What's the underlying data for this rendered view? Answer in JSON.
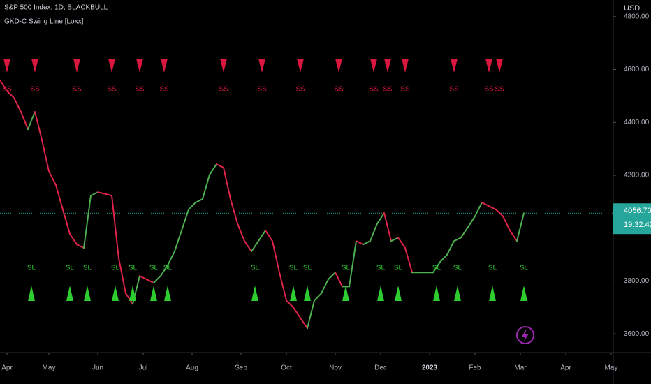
{
  "chart_data": {
    "type": "line",
    "title": "S&P 500 Index, 1D, BLACKBULL",
    "indicator": "GKD-C Swing Line [Loxx]",
    "currency": "USD",
    "up_color": "#4caf50",
    "down_color": "#e0244a",
    "x": [
      0,
      2,
      4,
      6,
      8,
      10,
      12,
      14,
      16,
      18,
      20,
      22,
      24,
      26,
      28,
      30,
      32,
      34,
      36,
      38,
      40,
      42,
      44,
      46,
      48,
      50,
      52,
      54,
      56,
      58,
      60,
      62,
      64,
      66,
      68,
      70,
      72,
      74,
      76,
      78,
      80,
      82,
      84,
      86,
      88,
      90,
      92,
      94,
      96,
      98,
      100,
      102,
      104,
      106,
      108,
      110,
      112,
      114,
      116,
      118,
      120,
      122,
      124,
      126,
      128,
      130,
      132,
      134,
      136,
      138,
      140,
      142,
      144,
      146,
      148,
      150
    ],
    "values": [
      4559,
      4519,
      4493,
      4440,
      4374,
      4440,
      4334,
      4215,
      4163,
      4070,
      3978,
      3938,
      3925,
      4123,
      4136,
      4130,
      4123,
      3885,
      3753,
      3713,
      3819,
      3806,
      3793,
      3819,
      3859,
      3912,
      3991,
      4070,
      4097,
      4110,
      4202,
      4242,
      4229,
      4110,
      4017,
      3951,
      3912,
      3951,
      3991,
      3951,
      3832,
      3726,
      3700,
      3660,
      3621,
      3726,
      3753,
      3806,
      3832,
      3779,
      3779,
      3951,
      3938,
      3951,
      4017,
      4057,
      3951,
      3964,
      3925,
      3832,
      3832,
      3832,
      3832,
      3872,
      3899,
      3951,
      3964,
      4004,
      4045,
      4097,
      4083,
      4070,
      4045,
      3991,
      3951,
      4056.7
    ],
    "xlim": [
      0,
      175.6
    ],
    "ylim": [
      3529,
      4863
    ],
    "xticks": [
      {
        "value": 2,
        "label": "Apr"
      },
      {
        "value": 14,
        "label": "May"
      },
      {
        "value": 28,
        "label": "Jun"
      },
      {
        "value": 41,
        "label": "Jul"
      },
      {
        "value": 55,
        "label": "Aug"
      },
      {
        "value": 69,
        "label": "Sep"
      },
      {
        "value": 82,
        "label": "Oct"
      },
      {
        "value": 96,
        "label": "Nov"
      },
      {
        "value": 109,
        "label": "Dec"
      },
      {
        "value": 123,
        "label": "2023"
      },
      {
        "value": 136,
        "label": "Feb"
      },
      {
        "value": 149,
        "label": "Mar"
      },
      {
        "value": 162,
        "label": "Apr"
      },
      {
        "value": 175,
        "label": "May"
      }
    ],
    "yticks": [
      {
        "value": 3600,
        "label": "3600.00"
      },
      {
        "value": 3800,
        "label": "3800.00"
      },
      {
        "value": 4000,
        "label": "4000.00"
      },
      {
        "value": 4200,
        "label": "4200.00"
      },
      {
        "value": 4400,
        "label": "4400.00"
      },
      {
        "value": 4600,
        "label": "4600.00"
      },
      {
        "value": 4800,
        "label": "4800.00"
      }
    ],
    "signals": {
      "sell": {
        "label": "SS",
        "color": "#d9173f",
        "x": [
          2,
          10,
          22,
          32,
          40,
          47,
          64,
          75,
          86,
          97,
          107,
          111,
          116,
          130,
          140,
          143
        ]
      },
      "buy": {
        "label": "SL",
        "color": "#2ecc2e",
        "x": [
          9,
          20,
          25,
          33,
          38,
          44,
          48,
          73,
          84,
          88,
          99,
          109,
          114,
          125,
          131,
          141,
          150
        ]
      }
    },
    "last_price": {
      "value": 4056.7,
      "label": "4056.70"
    },
    "countdown": "19:32:42"
  }
}
